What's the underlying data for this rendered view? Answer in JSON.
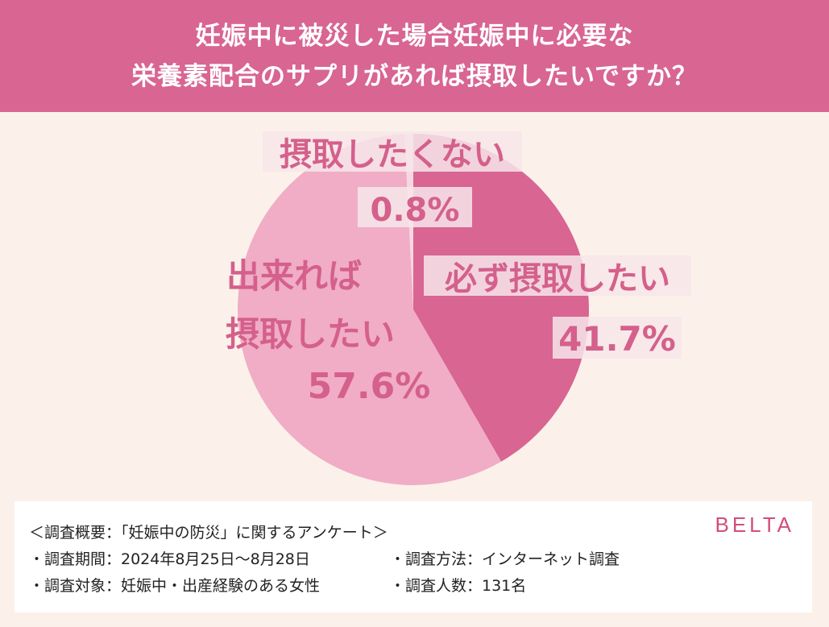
{
  "header": {
    "line1": "妊娠中に被災した場合妊娠中に必要な",
    "line2": "栄養素配合のサプリがあれば摂取したいですか？"
  },
  "chart_data": {
    "type": "pie",
    "slices": [
      {
        "label": "必ず摂取したい",
        "value": 41.7,
        "display": "41.7%",
        "color": "#d86592"
      },
      {
        "label": "出来れば摂取したい",
        "value": 57.6,
        "display": "57.6%",
        "color": "#f0adc5"
      },
      {
        "label": "摂取したくない",
        "value": 0.8,
        "display": "0.8%",
        "color": "#f6d8e2"
      }
    ]
  },
  "labels": {
    "must": {
      "line1": "必ず摂取したい",
      "pct": "41.7%"
    },
    "ifpossible": {
      "line1": "出来れば",
      "line2": "摂取したい",
      "pct": "57.6%"
    },
    "no": {
      "line1": "摂取したくない",
      "pct": "0.8%"
    }
  },
  "footer": {
    "title": "＜調査概要：「妊娠中の防災」に関するアンケート＞",
    "period": "・調査期間：2024年8月25日～8月28日",
    "method": "・調査方法：インターネット調査",
    "target": "・調査対象：妊娠中・出産経験のある女性",
    "count": "・調査人数：131名",
    "brand": "BELTA"
  }
}
